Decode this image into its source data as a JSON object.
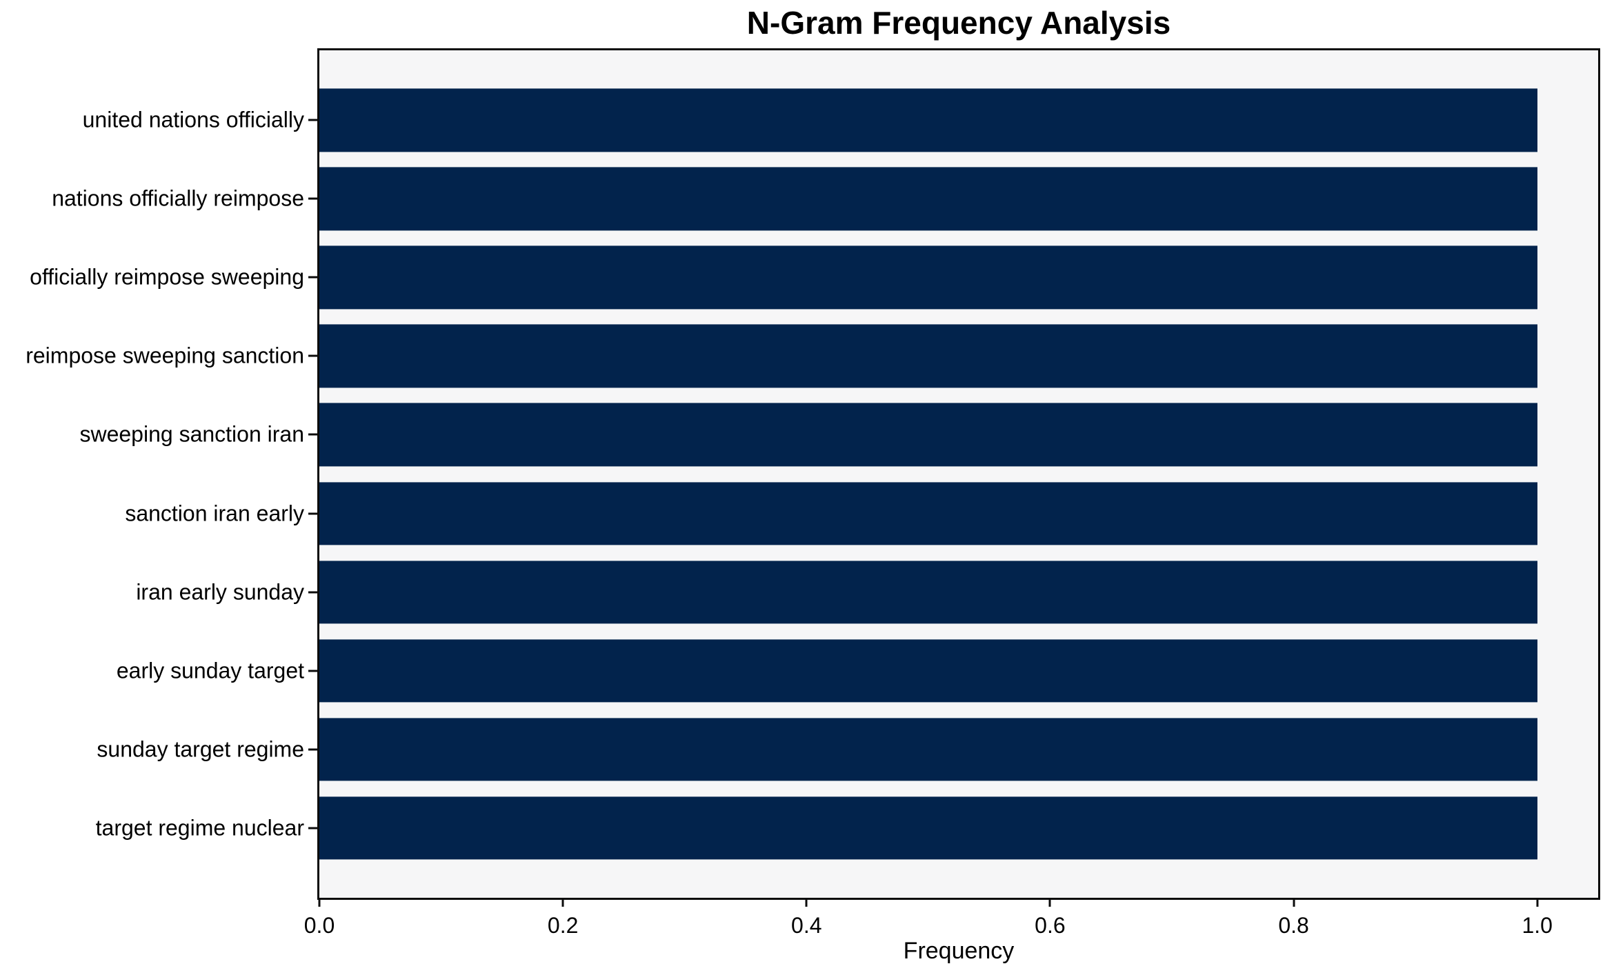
{
  "chart_data": {
    "type": "bar",
    "orientation": "horizontal",
    "title": "N-Gram Frequency Analysis",
    "xlabel": "Frequency",
    "ylabel": "",
    "categories": [
      "united nations officially",
      "nations officially reimpose",
      "officially reimpose sweeping",
      "reimpose sweeping sanction",
      "sweeping sanction iran",
      "sanction iran early",
      "iran early sunday",
      "early sunday target",
      "sunday target regime",
      "target regime nuclear"
    ],
    "values": [
      1.0,
      1.0,
      1.0,
      1.0,
      1.0,
      1.0,
      1.0,
      1.0,
      1.0,
      1.0
    ],
    "x_ticks": [
      0.0,
      0.2,
      0.4,
      0.6,
      0.8,
      1.0
    ],
    "x_tick_labels": [
      "0.0",
      "0.2",
      "0.4",
      "0.6",
      "0.8",
      "1.0"
    ],
    "xlim": [
      0,
      1.05
    ],
    "bar_thickness": 0.8,
    "axis_margin": 0.05,
    "grid": false,
    "legend": null,
    "bar_color": "#02234c",
    "plot_background": "#f6f6f7",
    "spine_color": "#0c0c0c",
    "text_color": "#000000"
  }
}
